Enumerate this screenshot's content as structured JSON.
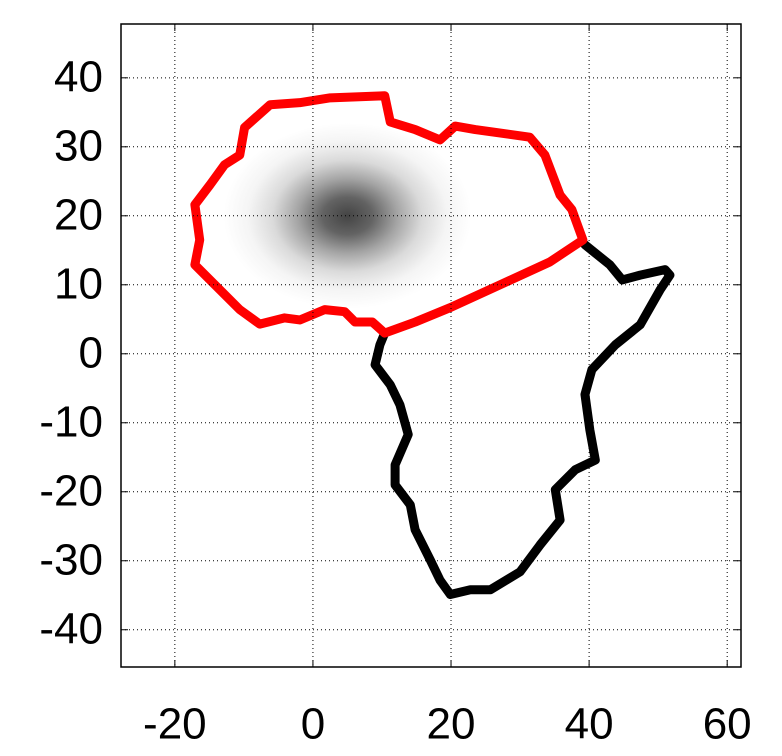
{
  "chart_data": {
    "type": "line",
    "xlim": [
      -27.8,
      62
    ],
    "ylim": [
      -45.4,
      47.8
    ],
    "xticks": [
      -20,
      0,
      20,
      40,
      60
    ],
    "yticks": [
      -40,
      -30,
      -20,
      -10,
      0,
      10,
      20,
      30,
      40
    ],
    "grid": true,
    "density": {
      "center_x": 5,
      "center_y": 20,
      "sigma_x": 6,
      "sigma_y": 4.5,
      "color": "#444444"
    },
    "series": [
      {
        "color": "#000000",
        "x": [
          10.4,
          9.7,
          9.0,
          11.2,
          12.6,
          13.8,
          11.9,
          11.9,
          14.1,
          14.8,
          17.0,
          18.4,
          19.9,
          22.8,
          25.7,
          30.0,
          32.9,
          35.8,
          35.1,
          38.0,
          40.9,
          40.1,
          39.4,
          40.4,
          43.8,
          47.4,
          50.3,
          51.7,
          51.0,
          47.4,
          44.8,
          43.0,
          39.4
        ],
        "values": [
          3.0,
          1.3,
          -1.6,
          -4.5,
          -7.4,
          -11.7,
          -16.1,
          -19.0,
          -21.9,
          -25.5,
          -29.9,
          -32.8,
          -34.9,
          -34.2,
          -34.2,
          -31.6,
          -27.7,
          -24.1,
          -19.7,
          -16.8,
          -15.4,
          -11.0,
          -5.9,
          -2.3,
          1.3,
          4.2,
          9.3,
          11.4,
          12.2,
          11.4,
          10.7,
          12.9,
          15.8
        ]
      },
      {
        "color": "#ff0000",
        "x": [
          10.4,
          8.6,
          6.1,
          4.6,
          1.7,
          -1.9,
          -4.1,
          -7.7,
          -10.6,
          -14.2,
          -17.1,
          -16.4,
          -17.1,
          -14.9,
          -12.8,
          -10.6,
          -9.9,
          -6.2,
          -1.9,
          2.5,
          10.4,
          11.2,
          14.8,
          18.4,
          20.6,
          23.5,
          31.4,
          33.6,
          35.8,
          37.5,
          39.1,
          34.3,
          27.1,
          19.9,
          14.8,
          10.4
        ],
        "values": [
          3.0,
          4.6,
          4.6,
          6.1,
          6.4,
          4.9,
          5.2,
          4.3,
          6.4,
          10.0,
          12.9,
          16.5,
          21.6,
          24.5,
          27.4,
          28.8,
          32.8,
          36.1,
          36.4,
          37.1,
          37.4,
          33.6,
          32.5,
          31.0,
          33.0,
          32.5,
          31.4,
          28.8,
          23.0,
          20.9,
          16.5,
          13.3,
          10.0,
          6.7,
          4.6,
          3.0
        ]
      }
    ]
  }
}
